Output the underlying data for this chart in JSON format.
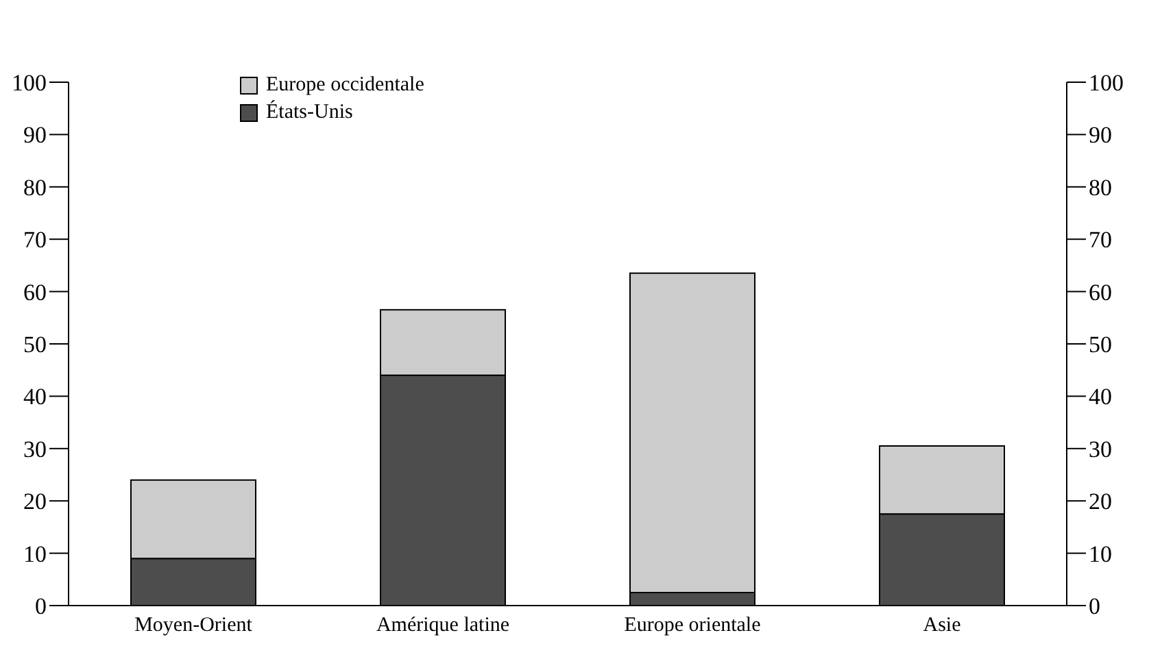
{
  "chart_data": {
    "type": "bar",
    "stacked": true,
    "categories": [
      "Moyen-Orient",
      "Amérique latine",
      "Europe orientale",
      "Asie"
    ],
    "series": [
      {
        "name": "États-Unis",
        "color": "#4d4d4d",
        "values": [
          9,
          44,
          2.5,
          17.5
        ]
      },
      {
        "name": "Europe occidentale",
        "color": "#cccccc",
        "values": [
          15,
          12.5,
          61,
          13
        ]
      }
    ],
    "ylim": [
      0,
      100
    ],
    "yticks": [
      0,
      10,
      20,
      30,
      40,
      50,
      60,
      70,
      80,
      90,
      100
    ],
    "y2lim": [
      0,
      100
    ],
    "y2ticks": [
      0,
      10,
      20,
      30,
      40,
      50,
      60,
      70,
      80,
      90,
      100
    ],
    "legend": "top left"
  }
}
